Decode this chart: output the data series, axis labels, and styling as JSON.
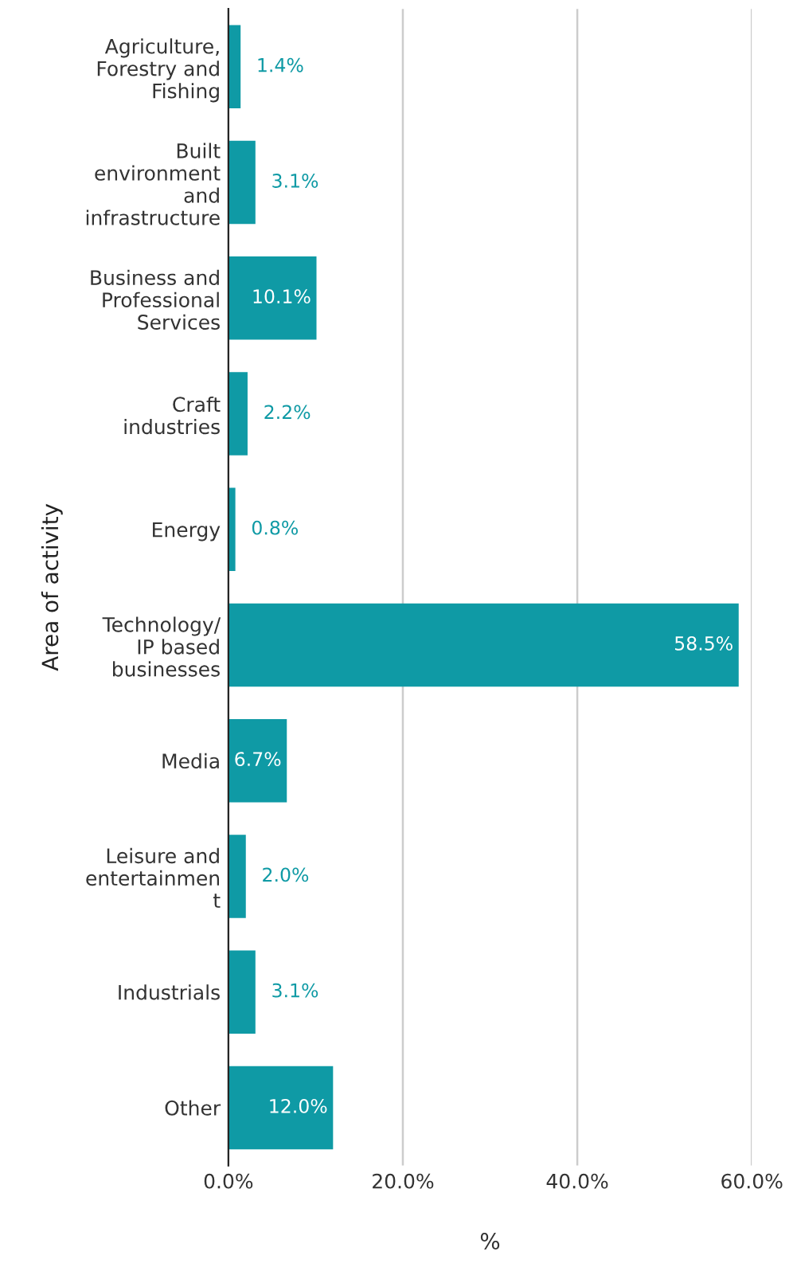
{
  "chart_data": {
    "type": "bar",
    "orientation": "horizontal",
    "xlabel": "%",
    "ylabel": "Area of activity",
    "categories": [
      "Agriculture,\nForestry and\nFishing",
      "Built\nenvironment\nand\ninfrastructure",
      "Business and\nProfessional\nServices",
      "Craft\nindustries",
      "Energy",
      "Technology/\nIP based\nbusinesses",
      "Media",
      "Leisure and\nentertainmen\nt",
      "Industrials",
      "Other"
    ],
    "values": [
      1.4,
      3.1,
      10.1,
      2.2,
      0.8,
      58.5,
      6.7,
      2.0,
      3.1,
      12.0
    ],
    "value_labels": [
      "1.4%",
      "3.1%",
      "10.1%",
      "2.2%",
      "0.8%",
      "58.5%",
      "6.7%",
      "2.0%",
      "3.1%",
      "12.0%"
    ],
    "color": "#0f9aa5",
    "xlim": [
      0,
      60
    ],
    "xticks": [
      {
        "value": 0,
        "label": "0.0%"
      },
      {
        "value": 20,
        "label": "20.0%"
      },
      {
        "value": 40,
        "label": "40.0%"
      },
      {
        "value": 60,
        "label": "60.0%"
      }
    ],
    "grid": "x"
  }
}
